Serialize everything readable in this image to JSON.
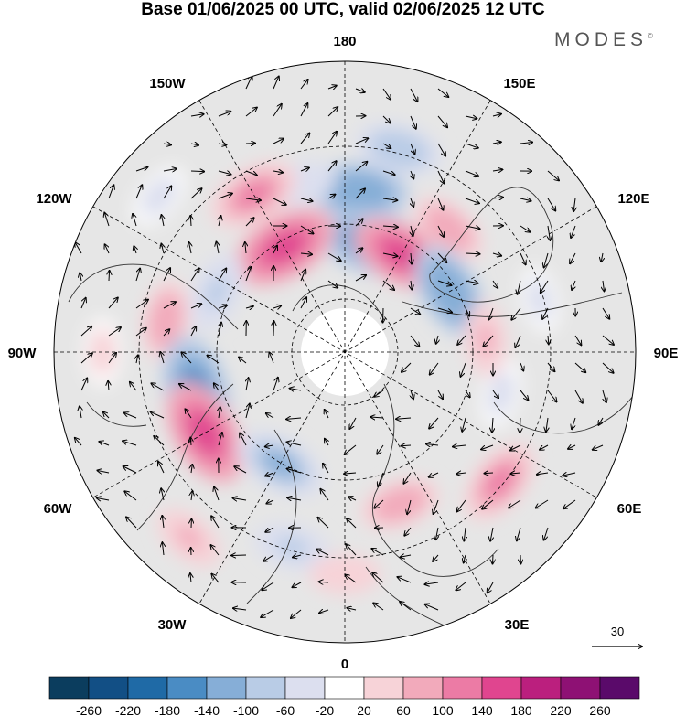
{
  "title": "Base 01/06/2025 00 UTC, valid 02/06/2025 12 UTC",
  "logo": "MODES",
  "logo_mark": "©",
  "longitude_labels": {
    "top": "180",
    "bottom": "0",
    "left": "90W",
    "right": "90E",
    "upper_left": "150W",
    "upper_right": "150E",
    "mid_left": "120W",
    "mid_right": "120E",
    "lower_left": "60W",
    "lower_right": "60E",
    "bottom_left": "30W",
    "bottom_right": "30E"
  },
  "vector_scale": {
    "value": "30"
  },
  "colorbar": {
    "colors": [
      "#0b3d5e",
      "#124f85",
      "#1f6aa6",
      "#4a8cc4",
      "#86aed7",
      "#b9cce6",
      "#dcdfef",
      "#ffffff",
      "#f7d3d8",
      "#f2aabb",
      "#ec7ba5",
      "#e0458f",
      "#bb1f7e",
      "#8e1174",
      "#5a0a6a"
    ],
    "tick_labels": [
      "-260",
      "-220",
      "-180",
      "-140",
      "-100",
      "-60",
      "-20",
      "20",
      "60",
      "100",
      "140",
      "180",
      "220",
      "260"
    ]
  },
  "map": {
    "projection": "north-polar-stereographic",
    "background_color": "#e6e6e6",
    "coastline_color": "#333333",
    "graticule": "dashed",
    "anomaly_cells": [
      {
        "lon": 175,
        "lat": 50,
        "value": -140
      },
      {
        "lon": 165,
        "lat": 38,
        "value": -100
      },
      {
        "lon": -165,
        "lat": 47,
        "value": -60
      },
      {
        "lon": -150,
        "lat": 45,
        "value": 120
      },
      {
        "lon": 140,
        "lat": 50,
        "value": 80
      },
      {
        "lon": 165,
        "lat": 62,
        "value": -180
      },
      {
        "lon": -150,
        "lat": 60,
        "value": 170
      },
      {
        "lon": 150,
        "lat": 62,
        "value": 150
      },
      {
        "lon": 120,
        "lat": 60,
        "value": -140
      },
      {
        "lon": -115,
        "lat": 55,
        "value": -80
      },
      {
        "lon": -100,
        "lat": 45,
        "value": 80
      },
      {
        "lon": -75,
        "lat": 52,
        "value": -180
      },
      {
        "lon": -60,
        "lat": 50,
        "value": 170
      },
      {
        "lon": -30,
        "lat": 58,
        "value": -120
      },
      {
        "lon": -15,
        "lat": 40,
        "value": -70
      },
      {
        "lon": 20,
        "lat": 50,
        "value": 80
      },
      {
        "lon": 50,
        "lat": 40,
        "value": 110
      },
      {
        "lon": 75,
        "lat": 50,
        "value": -40
      },
      {
        "lon": 95,
        "lat": 55,
        "value": 60
      },
      {
        "lon": -90,
        "lat": 30,
        "value": 40
      },
      {
        "lon": -40,
        "lat": 30,
        "value": 60
      },
      {
        "lon": 0,
        "lat": 35,
        "value": 50
      },
      {
        "lon": 105,
        "lat": 40,
        "value": -30
      },
      {
        "lon": -130,
        "lat": 30,
        "value": -40
      }
    ]
  }
}
